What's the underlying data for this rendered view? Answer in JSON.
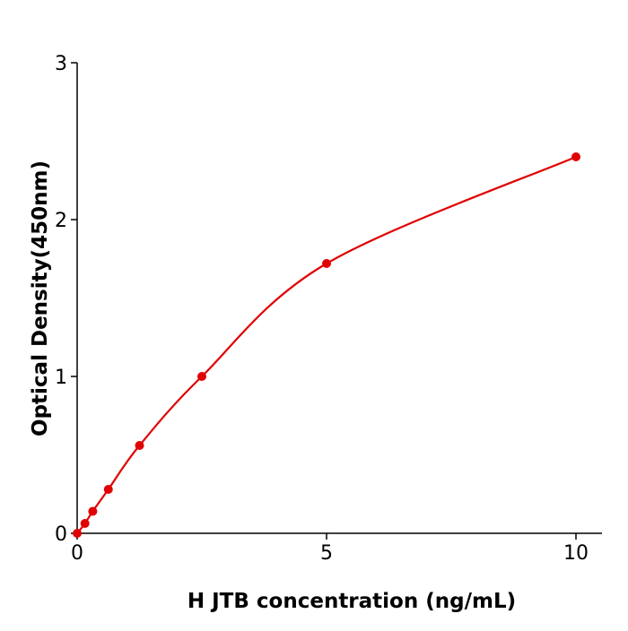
{
  "chart_data": {
    "type": "scatter",
    "title": "",
    "xlabel": "H  JTB concentration (ng/mL)",
    "ylabel": "Optical Density(450nm)",
    "xlim": [
      0,
      10.5
    ],
    "ylim": [
      0,
      3
    ],
    "xticks": [
      "0",
      "5",
      "10"
    ],
    "xtick_values": [
      0,
      5,
      10
    ],
    "yticks": [
      "0",
      "1",
      "2",
      "3"
    ],
    "ytick_values": [
      0,
      1,
      2,
      3
    ],
    "grid": false,
    "series": [
      {
        "color": "#e00000",
        "fit_line": true,
        "x": [
          0,
          0.156,
          0.3125,
          0.625,
          1.25,
          2.5,
          5,
          10
        ],
        "y": [
          0.0,
          0.063,
          0.14,
          0.28,
          0.56,
          1.0,
          1.72,
          2.4
        ]
      }
    ]
  }
}
